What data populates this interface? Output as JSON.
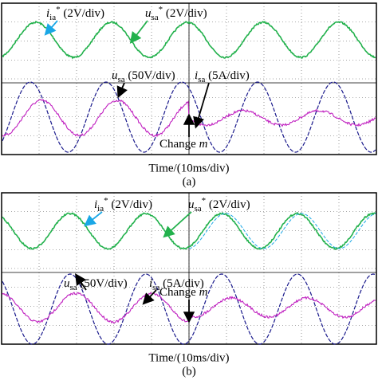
{
  "panels": [
    {
      "labels": [
        {
          "symbol": "i",
          "sub": "ia",
          "sup": "*",
          "text": " (2V/div)"
        },
        {
          "symbol": "u",
          "sub": "sa",
          "sup": "*",
          "text": " (2V/div)"
        },
        {
          "symbol": "u",
          "sub": "sa",
          "text": " (50V/div)"
        },
        {
          "symbol": "i",
          "sub": "sa",
          "text": " (5A/div)"
        }
      ],
      "change": {
        "text": "Change ",
        "symbol": "m"
      },
      "time_axis": "Time/(10ms/div)",
      "caption": "(a)"
    },
    {
      "labels": [
        {
          "symbol": "i",
          "sub": "ia",
          "sup": "*",
          "text": " (2V/div)"
        },
        {
          "symbol": "u",
          "sub": "sa",
          "sup": "*",
          "text": " (2V/div)"
        },
        {
          "symbol": "u",
          "sub": "sa",
          "text": " (50V/div)"
        },
        {
          "symbol": "i",
          "sub": "sa",
          "text": " (5A/div)"
        }
      ],
      "change": {
        "text": "Change ",
        "symbol": "m"
      },
      "time_axis": "Time/(10ms/div)",
      "caption": "(b)"
    }
  ]
}
